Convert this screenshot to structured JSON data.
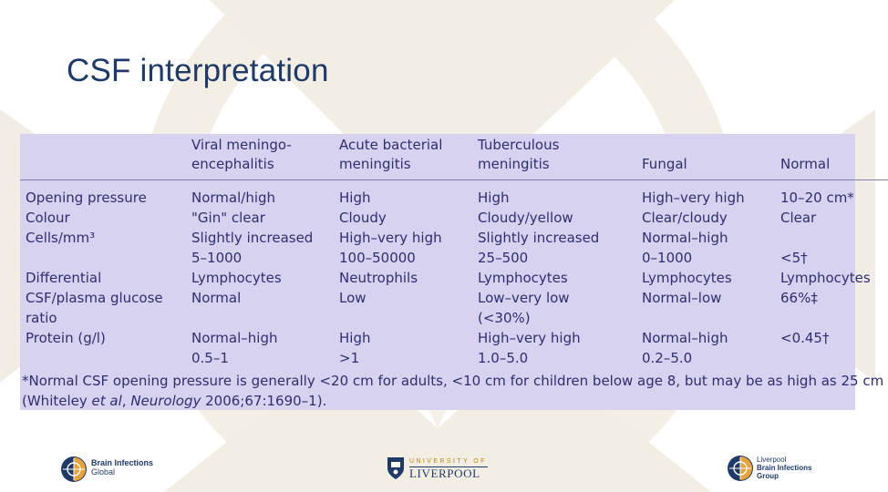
{
  "slide": {
    "title": "CSF interpretation"
  },
  "table": {
    "columns": [
      "",
      "Viral meningo-\nencephalitis",
      "Acute bacterial\nmeningitis",
      "Tuberculous\nmeningitis",
      "Fungal",
      "Normal"
    ],
    "rows": [
      [
        "Opening pressure\nColour\nCells/mm³\n\nDifferential\nCSF/plasma glucose\nratio\nProtein (g/l)\n",
        "Normal/high\n\"Gin\" clear\nSlightly increased\n5–1000\nLymphocytes\nNormal\n\nNormal–high\n0.5–1",
        "High\nCloudy\nHigh–very high\n100–50000\nNeutrophils\nLow\n\nHigh\n>1",
        "High\nCloudy/yellow\nSlightly increased\n25–500\nLymphocytes\nLow–very low\n(<30%)\nHigh–very high\n1.0–5.0",
        "High–very high\nClear/cloudy\nNormal–high\n0–1000\nLymphocytes\nNormal–low\n\nNormal–high\n0.2–5.0",
        "10–20 cm*\nClear\n\n<5†\nLymphocytes\n66%‡\n\n<0.45†\n"
      ]
    ]
  },
  "footnote": {
    "line1": "*Normal CSF opening pressure is generally <20 cm for adults, <10 cm for children below age 8, but may be as high as 25 cm",
    "line2_before": "(Whiteley ",
    "line2_italic_1": "et al",
    "line2_mid": ", ",
    "line2_italic_2": "Neurology",
    "line2_after": " 2006;67:1690–1)."
  },
  "footer": {
    "left_logo": {
      "line1": "Brain Infections",
      "line2": "Global"
    },
    "center_logo": {
      "line1": "UNIVERSITY OF",
      "line2": "LIVERPOOL"
    },
    "right_logo": {
      "line1": "Liverpool",
      "line2": "Brain Infections",
      "line3": "Group"
    }
  },
  "colors": {
    "title": "#1f3a68",
    "table_background": "#d6d2ef",
    "table_text": "#2f2e6f",
    "watermark": "#f1ebde"
  }
}
